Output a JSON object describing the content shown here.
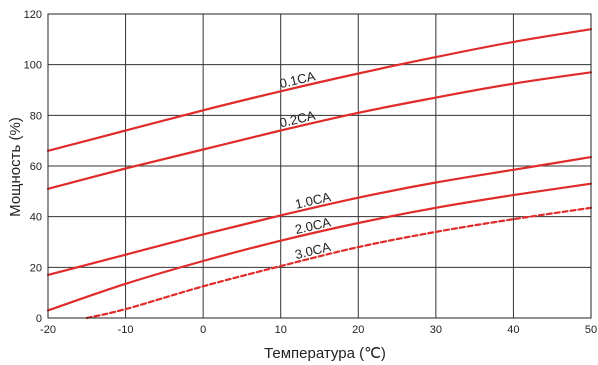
{
  "chart_data": {
    "type": "line",
    "xlabel": "Температура (℃)",
    "ylabel": "Мощность (%)",
    "xlim": [
      -20,
      50
    ],
    "ylim": [
      0,
      120
    ],
    "x_ticks": [
      "-20",
      "-10",
      "0",
      "10",
      "20",
      "30",
      "40",
      "50"
    ],
    "y_ticks": [
      "0",
      "20",
      "40",
      "60",
      "80",
      "100",
      "120"
    ],
    "grid": true,
    "line_color": "#e02b2b",
    "series": [
      {
        "name": "0.1CA",
        "style": "solid",
        "x": [
          -20,
          -10,
          0,
          10,
          20,
          30,
          40,
          50
        ],
        "y": [
          66,
          74,
          82,
          89.5,
          96.5,
          103,
          109,
          114
        ]
      },
      {
        "name": "0.2CA",
        "style": "solid",
        "x": [
          -20,
          -10,
          0,
          10,
          20,
          30,
          40,
          50
        ],
        "y": [
          51,
          59,
          66.5,
          74,
          81,
          87,
          92.5,
          97
        ]
      },
      {
        "name": "1.0CA",
        "style": "solid",
        "x": [
          -20,
          -10,
          0,
          10,
          20,
          30,
          40,
          50
        ],
        "y": [
          17,
          25,
          33,
          40.5,
          47.5,
          53.5,
          58.5,
          63.5
        ]
      },
      {
        "name": "2.0CA",
        "style": "solid",
        "x": [
          -20,
          -10,
          0,
          10,
          20,
          30,
          40,
          50
        ],
        "y": [
          3,
          13.5,
          22.5,
          30.5,
          37.5,
          43.5,
          48.5,
          53
        ]
      },
      {
        "name": "3.0CA",
        "style": "dashed",
        "x": [
          -15,
          -10,
          0,
          10,
          20,
          30,
          40,
          50
        ],
        "y": [
          0,
          3.5,
          12.5,
          20.5,
          28,
          34,
          39,
          43.5
        ]
      }
    ]
  }
}
